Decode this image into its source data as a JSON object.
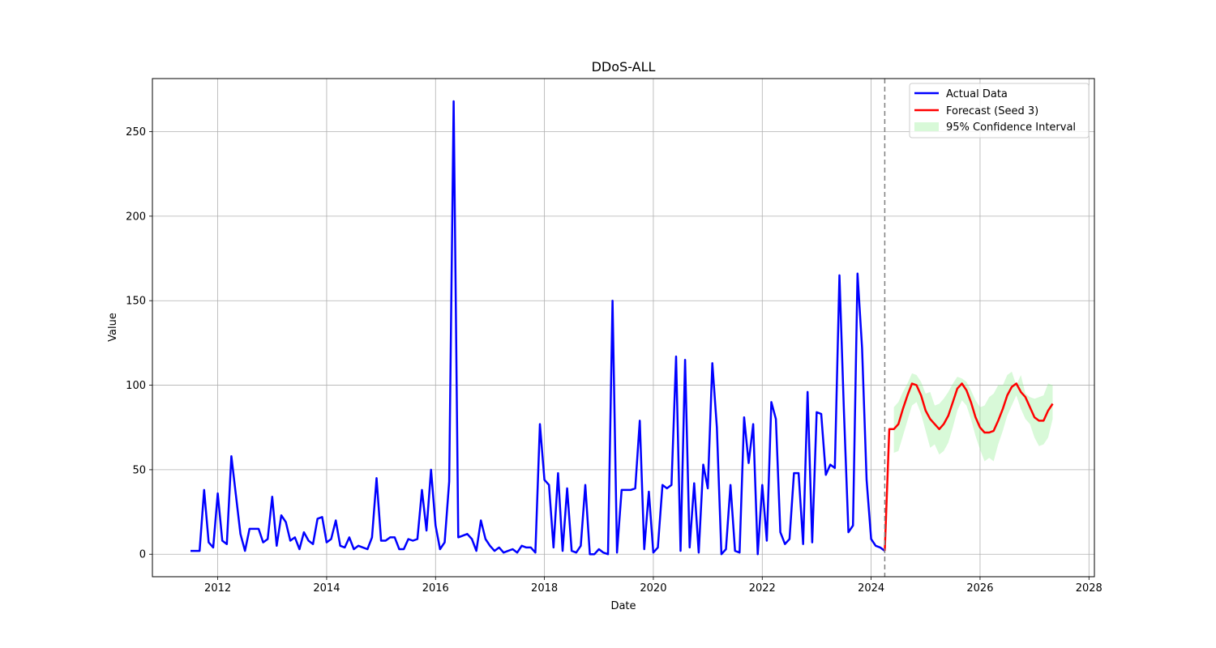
{
  "chart_data": {
    "type": "line",
    "title": "DDoS-ALL",
    "xlabel": "Date",
    "ylabel": "Value",
    "xlim": [
      2010.8,
      2028.1
    ],
    "ylim": [
      -13.3,
      281.4
    ],
    "x_ticks": [
      2012,
      2014,
      2016,
      2018,
      2020,
      2022,
      2024,
      2026,
      2028
    ],
    "y_ticks": [
      0,
      50,
      100,
      150,
      200,
      250
    ],
    "grid": true,
    "legend_position": "top-right",
    "forecast_start": 2024.25,
    "colors": {
      "actual": "#0000ff",
      "forecast": "#ff0000",
      "ci": "#90ee90",
      "split_line": "#808080",
      "grid": "#b0b0b0"
    },
    "series": [
      {
        "name": "Actual Data",
        "x": [
          2011.5,
          2011.583,
          2011.667,
          2011.75,
          2011.833,
          2011.917,
          2012.0,
          2012.083,
          2012.167,
          2012.25,
          2012.333,
          2012.417,
          2012.5,
          2012.583,
          2012.667,
          2012.75,
          2012.833,
          2012.917,
          2013.0,
          2013.083,
          2013.167,
          2013.25,
          2013.333,
          2013.417,
          2013.5,
          2013.583,
          2013.667,
          2013.75,
          2013.833,
          2013.917,
          2014.0,
          2014.083,
          2014.167,
          2014.25,
          2014.333,
          2014.417,
          2014.5,
          2014.583,
          2014.667,
          2014.75,
          2014.833,
          2014.917,
          2015.0,
          2015.083,
          2015.167,
          2015.25,
          2015.333,
          2015.417,
          2015.5,
          2015.583,
          2015.667,
          2015.75,
          2015.833,
          2015.917,
          2016.0,
          2016.083,
          2016.167,
          2016.25,
          2016.333,
          2016.417,
          2016.5,
          2016.583,
          2016.667,
          2016.75,
          2016.833,
          2016.917,
          2017.0,
          2017.083,
          2017.167,
          2017.25,
          2017.333,
          2017.417,
          2017.5,
          2017.583,
          2017.667,
          2017.75,
          2017.833,
          2017.917,
          2018.0,
          2018.083,
          2018.167,
          2018.25,
          2018.333,
          2018.417,
          2018.5,
          2018.583,
          2018.667,
          2018.75,
          2018.833,
          2018.917,
          2019.0,
          2019.083,
          2019.167,
          2019.25,
          2019.333,
          2019.417,
          2019.5,
          2019.583,
          2019.667,
          2019.75,
          2019.833,
          2019.917,
          2020.0,
          2020.083,
          2020.167,
          2020.25,
          2020.333,
          2020.417,
          2020.5,
          2020.583,
          2020.667,
          2020.75,
          2020.833,
          2020.917,
          2021.0,
          2021.083,
          2021.167,
          2021.25,
          2021.333,
          2021.417,
          2021.5,
          2021.583,
          2021.667,
          2021.75,
          2021.833,
          2021.917,
          2022.0,
          2022.083,
          2022.167,
          2022.25,
          2022.333,
          2022.417,
          2022.5,
          2022.583,
          2022.667,
          2022.75,
          2022.833,
          2022.917,
          2023.0,
          2023.083,
          2023.167,
          2023.25,
          2023.333,
          2023.417,
          2023.5,
          2023.583,
          2023.667,
          2023.75,
          2023.833,
          2023.917,
          2024.0,
          2024.083,
          2024.167,
          2024.25
        ],
        "y": [
          2,
          2,
          2,
          38,
          7,
          4,
          36,
          8,
          6,
          58,
          35,
          12,
          2,
          15,
          15,
          15,
          7,
          9,
          34,
          5,
          23,
          19,
          8,
          10,
          3,
          13,
          8,
          6,
          21,
          22,
          7,
          9,
          20,
          5,
          4,
          10,
          3,
          5,
          4,
          3,
          10,
          45,
          8,
          8,
          10,
          10,
          3,
          3,
          9,
          8,
          9,
          38,
          14,
          50,
          17,
          3,
          7,
          43,
          268,
          10,
          11,
          12,
          9,
          2,
          20,
          9,
          5,
          2,
          4,
          1,
          2,
          3,
          1,
          5,
          4,
          4,
          1,
          77,
          44,
          41,
          4,
          48,
          2,
          39,
          2,
          1,
          5,
          41,
          0,
          0,
          3,
          1,
          0,
          150,
          1,
          38,
          38,
          38,
          39,
          79,
          3,
          37,
          1,
          4,
          41,
          39,
          41,
          117,
          2,
          115,
          4,
          42,
          1,
          53,
          39,
          113,
          75,
          0,
          3,
          41,
          2,
          1,
          81,
          54,
          77,
          0,
          41,
          8,
          90,
          80,
          13,
          6,
          9,
          48,
          48,
          6,
          96,
          7,
          84,
          83,
          47,
          53,
          51,
          165,
          85,
          13,
          17,
          166,
          122,
          44,
          9,
          5,
          4,
          2
        ]
      },
      {
        "name": "Forecast (Seed 3)",
        "x": [
          2024.25,
          2024.333,
          2024.417,
          2024.5,
          2024.583,
          2024.667,
          2024.75,
          2024.833,
          2024.917,
          2025.0,
          2025.083,
          2025.167,
          2025.25,
          2025.333,
          2025.417,
          2025.5,
          2025.583,
          2025.667,
          2025.75,
          2025.833,
          2025.917,
          2026.0,
          2026.083,
          2026.167,
          2026.25,
          2026.333,
          2026.417,
          2026.5,
          2026.583,
          2026.667,
          2026.75,
          2026.833,
          2026.917,
          2027.0,
          2027.083,
          2027.167,
          2027.25,
          2027.333
        ],
        "y": [
          2,
          74,
          74,
          77,
          86,
          94,
          101,
          100,
          94,
          85,
          80,
          77,
          74,
          77,
          82,
          90,
          98,
          101,
          97,
          90,
          81,
          75,
          72,
          72,
          73,
          79,
          86,
          94,
          99,
          101,
          96,
          93,
          87,
          81,
          79,
          79,
          85,
          89
        ]
      }
    ],
    "confidence_interval": {
      "name": "95% Confidence Interval",
      "x": [
        2024.417,
        2024.5,
        2024.583,
        2024.667,
        2024.75,
        2024.833,
        2024.917,
        2025.0,
        2025.083,
        2025.167,
        2025.25,
        2025.333,
        2025.417,
        2025.5,
        2025.583,
        2025.667,
        2025.75,
        2025.833,
        2025.917,
        2026.0,
        2026.083,
        2026.167,
        2026.25,
        2026.333,
        2026.417,
        2026.5,
        2026.583,
        2026.667,
        2026.75,
        2026.833,
        2026.917,
        2027.0,
        2027.083,
        2027.167,
        2027.25,
        2027.333
      ],
      "lower": [
        60,
        61,
        70,
        79,
        88,
        90,
        83,
        73,
        63,
        65,
        59,
        61,
        66,
        75,
        85,
        91,
        88,
        80,
        70,
        62,
        55,
        57,
        55,
        65,
        73,
        82,
        88,
        94,
        86,
        80,
        77,
        69,
        64,
        65,
        69,
        80
      ],
      "upper": [
        87,
        90,
        96,
        101,
        107,
        106,
        102,
        95,
        96,
        88,
        89,
        92,
        96,
        101,
        105,
        104,
        102,
        97,
        91,
        87,
        88,
        93,
        95,
        100,
        100,
        106,
        108,
        100,
        106,
        95,
        93,
        92,
        93,
        94,
        101,
        100
      ]
    }
  }
}
